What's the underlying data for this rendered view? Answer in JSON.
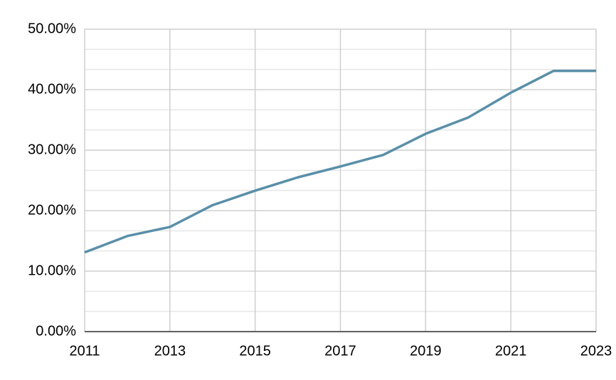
{
  "chart_data": {
    "type": "line",
    "x": [
      2011,
      2012,
      2013,
      2014,
      2015,
      2016,
      2017,
      2018,
      2019,
      2020,
      2021,
      2022,
      2023
    ],
    "series": [
      {
        "color": "#5a8fa9",
        "values": [
          13.1,
          15.8,
          17.3,
          20.9,
          23.3,
          25.5,
          27.3,
          29.2,
          32.7,
          35.4,
          39.5,
          43.1,
          43.1
        ]
      }
    ],
    "xlim": [
      2011,
      2023
    ],
    "xticks": [
      2011,
      2013,
      2015,
      2017,
      2019,
      2021,
      2023
    ],
    "ylim": [
      0,
      50
    ],
    "yticks": [
      {
        "value": 0,
        "label": "0.00%"
      },
      {
        "value": 10,
        "label": "10.00%"
      },
      {
        "value": 20,
        "label": "20.00%"
      },
      {
        "value": 30,
        "label": "30.00%"
      },
      {
        "value": 40,
        "label": "40.00%"
      },
      {
        "value": 50,
        "label": "50.00%"
      }
    ],
    "grid": true,
    "minor_grid_divisions": 3
  }
}
